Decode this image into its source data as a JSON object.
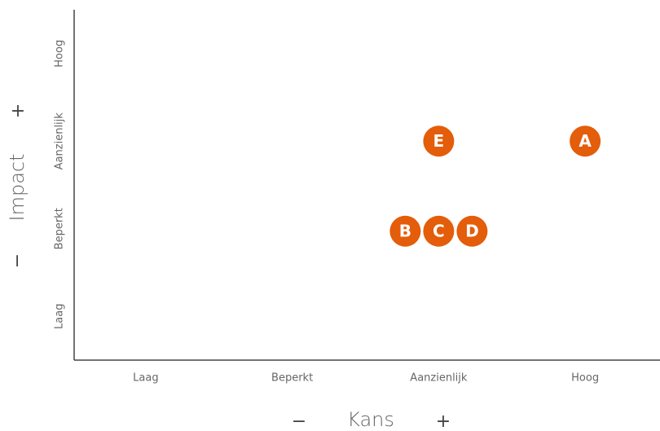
{
  "chart_data": {
    "type": "scatter",
    "x_label": "Kans",
    "y_label": "Impact",
    "x_low": "−",
    "x_high": "+",
    "y_low": "−",
    "y_high": "+",
    "x_categories": [
      "Laag",
      "Beperkt",
      "Aanzienlijk",
      "Hoog"
    ],
    "y_categories": [
      "Laag",
      "Beperkt",
      "Aanzienlijk",
      "Hoog"
    ],
    "color": "#e35d0a",
    "points": [
      {
        "label": "A",
        "x": "Hoog",
        "y": "Aanzienlijk"
      },
      {
        "label": "B",
        "x": "Aanzienlijk",
        "y": "Beperkt"
      },
      {
        "label": "C",
        "x": "Aanzienlijk",
        "y": "Beperkt"
      },
      {
        "label": "D",
        "x": "Aanzienlijk",
        "y": "Beperkt"
      },
      {
        "label": "E",
        "x": "Aanzienlijk",
        "y": "Aanzienlijk"
      }
    ]
  }
}
